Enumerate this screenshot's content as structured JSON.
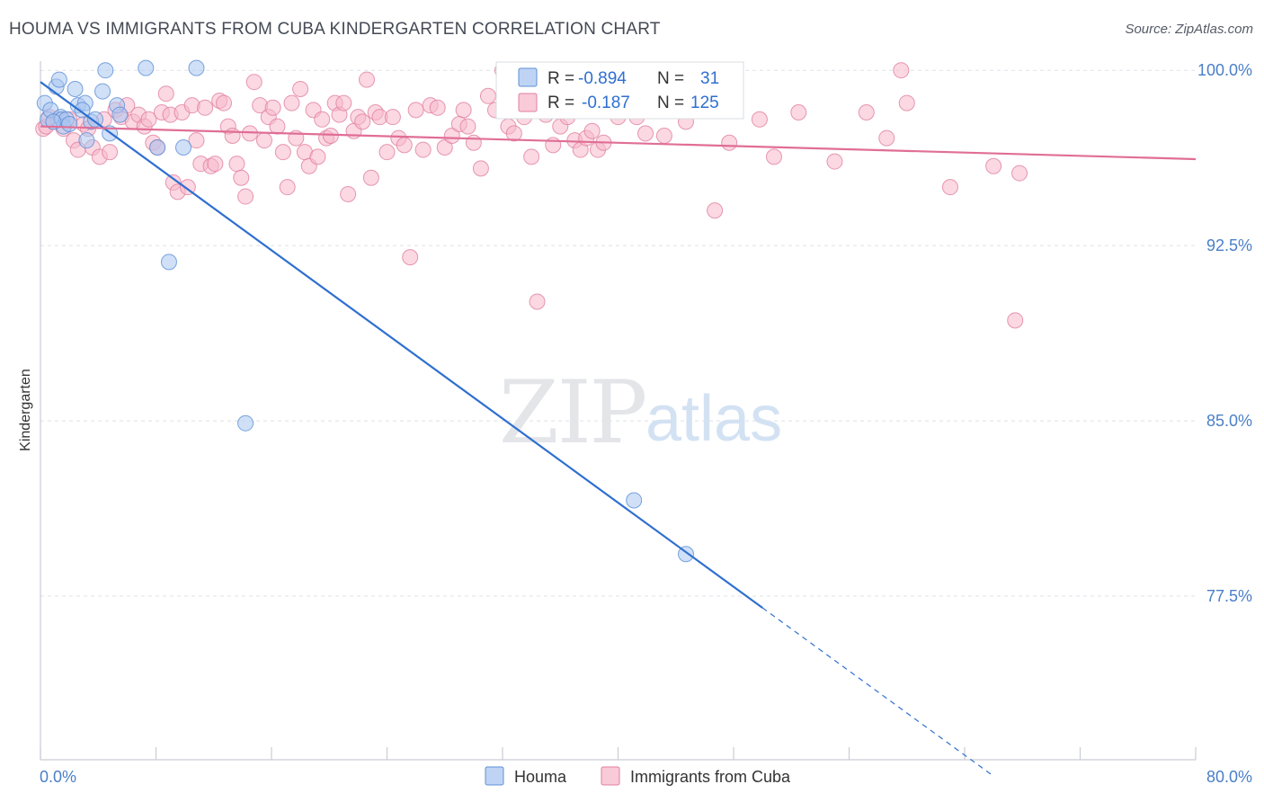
{
  "title": "HOUMA VS IMMIGRANTS FROM CUBA KINDERGARTEN CORRELATION CHART",
  "source": "Source: ZipAtlas.com",
  "watermark": {
    "zip": "ZIP",
    "atlas": "atlas"
  },
  "colors": {
    "houma_fill": "#a9c6f0",
    "houma_stroke": "#5b8fd6",
    "houma_line": "#2f6fd0",
    "cuba_fill": "#f7b8cb",
    "cuba_stroke": "#e07fa0",
    "cuba_line": "#e06e96",
    "tick_text": "#4a7fc8",
    "grid": "#dde1e8"
  },
  "stats_box": {
    "rows": [
      {
        "r_label": "R =",
        "r_value": "-0.894",
        "n_label": "N =",
        "n_value": "31"
      },
      {
        "r_label": "R =",
        "r_value": "-0.187",
        "n_label": "N =",
        "n_value": "125"
      }
    ]
  },
  "chart_data": {
    "type": "scatter",
    "title": "HOUMA VS IMMIGRANTS FROM CUBA KINDERGARTEN CORRELATION CHART",
    "xlabel": "",
    "ylabel": "Kindergarten",
    "xlim": [
      0,
      80
    ],
    "ylim": [
      70.5,
      100.7
    ],
    "x_tick_labels": [
      {
        "value": 0,
        "label": "0.0%"
      },
      {
        "value": 80,
        "label": "80.0%"
      }
    ],
    "y_ticks": [
      {
        "value": 100,
        "label": "100.0%"
      },
      {
        "value": 92.5,
        "label": "92.5%"
      },
      {
        "value": 85,
        "label": "85.0%"
      },
      {
        "value": 77.5,
        "label": "77.5%"
      }
    ],
    "legend_position": "bottom-center",
    "grid": true,
    "series": [
      {
        "name": "Houma",
        "color": "#a9c6f0",
        "trend": {
          "x0": 0,
          "y0": 99.5,
          "x1": 50,
          "y1": 77.0,
          "dash_to_x": 66
        },
        "points": [
          [
            0.3,
            98.6
          ],
          [
            0.5,
            97.9
          ],
          [
            0.7,
            98.3
          ],
          [
            1.1,
            99.3
          ],
          [
            1.3,
            99.6
          ],
          [
            1.4,
            98.0
          ],
          [
            1.5,
            97.9
          ],
          [
            1.6,
            97.6
          ],
          [
            1.8,
            97.9
          ],
          [
            2.0,
            97.7
          ],
          [
            2.4,
            99.2
          ],
          [
            2.6,
            98.5
          ],
          [
            3.1,
            98.6
          ],
          [
            3.2,
            97.0
          ],
          [
            3.5,
            97.8
          ],
          [
            3.8,
            97.9
          ],
          [
            4.3,
            99.1
          ],
          [
            4.5,
            100.0
          ],
          [
            4.8,
            97.3
          ],
          [
            5.3,
            98.5
          ],
          [
            5.5,
            98.1
          ],
          [
            7.3,
            100.1
          ],
          [
            8.1,
            96.7
          ],
          [
            9.9,
            96.7
          ],
          [
            10.8,
            100.1
          ],
          [
            8.9,
            91.8
          ],
          [
            14.2,
            84.9
          ],
          [
            41.1,
            81.6
          ],
          [
            44.7,
            79.3
          ],
          [
            0.9,
            97.8
          ],
          [
            2.9,
            98.3
          ]
        ]
      },
      {
        "name": "Immigrants from Cuba",
        "color": "#f7b8cb",
        "trend": {
          "x0": 0,
          "y0": 97.6,
          "x1": 80,
          "y1": 96.2
        },
        "points": [
          [
            0.2,
            97.5
          ],
          [
            0.4,
            97.6
          ],
          [
            0.6,
            98.0
          ],
          [
            0.9,
            97.8
          ],
          [
            1.2,
            97.9
          ],
          [
            1.6,
            97.5
          ],
          [
            2.0,
            97.9
          ],
          [
            2.3,
            97.0
          ],
          [
            2.6,
            96.6
          ],
          [
            3.0,
            97.7
          ],
          [
            3.3,
            97.5
          ],
          [
            3.6,
            96.7
          ],
          [
            4.1,
            96.3
          ],
          [
            4.4,
            97.9
          ],
          [
            4.8,
            96.5
          ],
          [
            5.2,
            98.3
          ],
          [
            5.6,
            98.0
          ],
          [
            6.0,
            98.5
          ],
          [
            6.4,
            97.8
          ],
          [
            6.8,
            98.1
          ],
          [
            7.2,
            97.6
          ],
          [
            7.5,
            97.9
          ],
          [
            7.8,
            96.9
          ],
          [
            8.1,
            96.7
          ],
          [
            8.4,
            98.2
          ],
          [
            8.7,
            99.0
          ],
          [
            9.0,
            98.1
          ],
          [
            9.2,
            95.2
          ],
          [
            9.5,
            94.8
          ],
          [
            9.8,
            98.2
          ],
          [
            10.2,
            95.0
          ],
          [
            10.5,
            98.5
          ],
          [
            10.8,
            97.0
          ],
          [
            11.1,
            96.0
          ],
          [
            11.4,
            98.4
          ],
          [
            11.8,
            95.9
          ],
          [
            12.1,
            96.0
          ],
          [
            12.4,
            98.7
          ],
          [
            12.7,
            98.6
          ],
          [
            13.0,
            97.6
          ],
          [
            13.3,
            97.2
          ],
          [
            13.6,
            96.0
          ],
          [
            13.9,
            95.4
          ],
          [
            14.2,
            94.6
          ],
          [
            14.5,
            97.3
          ],
          [
            14.8,
            99.5
          ],
          [
            15.2,
            98.5
          ],
          [
            15.5,
            97.0
          ],
          [
            15.8,
            98.0
          ],
          [
            16.1,
            98.4
          ],
          [
            16.4,
            97.6
          ],
          [
            16.8,
            96.5
          ],
          [
            17.1,
            95.0
          ],
          [
            17.4,
            98.6
          ],
          [
            17.7,
            97.1
          ],
          [
            18.0,
            99.2
          ],
          [
            18.3,
            96.5
          ],
          [
            18.6,
            95.9
          ],
          [
            18.9,
            98.3
          ],
          [
            19.2,
            96.3
          ],
          [
            19.5,
            97.9
          ],
          [
            19.8,
            97.1
          ],
          [
            20.1,
            97.2
          ],
          [
            20.4,
            98.6
          ],
          [
            20.7,
            98.1
          ],
          [
            21.0,
            98.6
          ],
          [
            21.3,
            94.7
          ],
          [
            21.7,
            97.4
          ],
          [
            22.0,
            98.0
          ],
          [
            22.3,
            97.8
          ],
          [
            22.6,
            99.6
          ],
          [
            22.9,
            95.4
          ],
          [
            23.2,
            98.2
          ],
          [
            23.5,
            98.0
          ],
          [
            24.0,
            96.5
          ],
          [
            24.4,
            98.0
          ],
          [
            24.8,
            97.1
          ],
          [
            25.2,
            96.8
          ],
          [
            25.6,
            92.0
          ],
          [
            26.0,
            98.3
          ],
          [
            26.5,
            96.6
          ],
          [
            27.0,
            98.5
          ],
          [
            27.5,
            98.4
          ],
          [
            28.0,
            96.7
          ],
          [
            28.5,
            97.2
          ],
          [
            29.0,
            97.7
          ],
          [
            29.3,
            98.3
          ],
          [
            29.6,
            97.6
          ],
          [
            30.0,
            96.9
          ],
          [
            30.5,
            95.8
          ],
          [
            31.0,
            98.9
          ],
          [
            31.5,
            98.3
          ],
          [
            32.0,
            100.0
          ],
          [
            32.4,
            97.6
          ],
          [
            32.8,
            97.3
          ],
          [
            33.5,
            98.0
          ],
          [
            34.0,
            96.3
          ],
          [
            34.4,
            90.1
          ],
          [
            35.0,
            98.1
          ],
          [
            35.5,
            96.8
          ],
          [
            36.0,
            97.6
          ],
          [
            36.5,
            98.0
          ],
          [
            37.0,
            97.0
          ],
          [
            37.4,
            96.6
          ],
          [
            37.8,
            97.1
          ],
          [
            38.2,
            97.4
          ],
          [
            38.6,
            96.6
          ],
          [
            39.0,
            96.9
          ],
          [
            40.0,
            98.0
          ],
          [
            41.3,
            98.0
          ],
          [
            41.9,
            97.3
          ],
          [
            43.2,
            97.2
          ],
          [
            44.7,
            97.8
          ],
          [
            46.7,
            94.0
          ],
          [
            47.7,
            96.9
          ],
          [
            49.8,
            97.9
          ],
          [
            50.8,
            96.3
          ],
          [
            52.5,
            98.2
          ],
          [
            55.0,
            96.1
          ],
          [
            57.2,
            98.2
          ],
          [
            58.6,
            97.1
          ],
          [
            59.6,
            100.0
          ],
          [
            60.0,
            98.6
          ],
          [
            63.0,
            95.0
          ],
          [
            66.0,
            95.9
          ],
          [
            67.8,
            95.6
          ],
          [
            67.5,
            89.3
          ]
        ]
      }
    ]
  }
}
